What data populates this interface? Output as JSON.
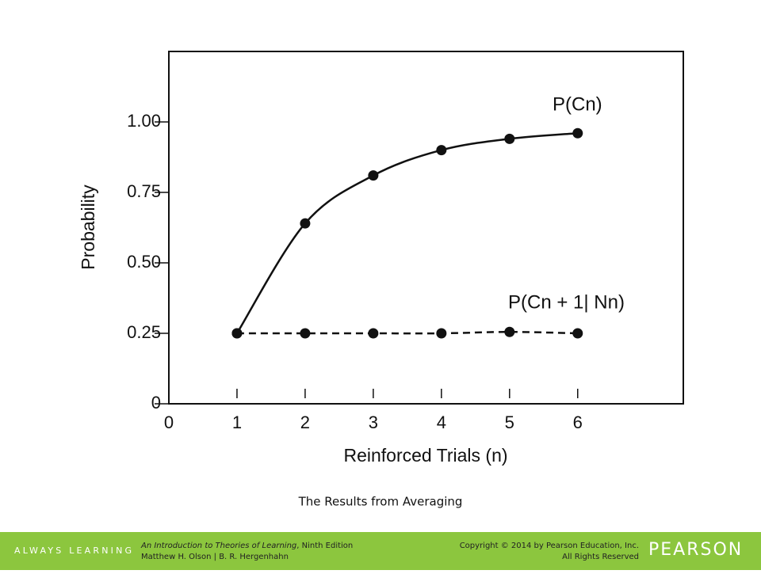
{
  "chart_data": {
    "type": "line",
    "xlabel": "Reinforced Trials (n)",
    "ylabel": "Probability",
    "x": [
      1,
      2,
      3,
      4,
      5,
      6
    ],
    "series": [
      {
        "name": "P(Cn)",
        "color": "#111111",
        "style": "solid",
        "values": [
          0.25,
          0.64,
          0.81,
          0.9,
          0.94,
          0.96
        ]
      },
      {
        "name": "P(Cn + 1| Nn)",
        "color": "#111111",
        "style": "dashed",
        "values": [
          0.25,
          0.25,
          0.25,
          0.25,
          0.255,
          0.25
        ]
      }
    ],
    "xlim": [
      0,
      7.55
    ],
    "ylim": [
      0,
      1.25
    ],
    "xticks": [
      0,
      1,
      2,
      3,
      4,
      5,
      6
    ],
    "yticks": [
      0,
      {
        "value": 0.25,
        "label": "0.25"
      },
      {
        "value": 0.5,
        "label": "0.50"
      },
      {
        "value": 0.75,
        "label": "0.75"
      },
      {
        "value": 1,
        "label": "1.00"
      }
    ]
  },
  "slide": {
    "caption": "The Results from Averaging"
  },
  "footer": {
    "tagline": "ALWAYS LEARNING",
    "book_title": "An Introduction to Theories of Learning",
    "edition": ", Ninth Edition",
    "authors": "Matthew H. Olson | B. R. Hergenhahn",
    "copyright": "Copyright © 2014 by Pearson Education, Inc.",
    "rights": "All Rights Reserved",
    "brand": "PEARSON"
  }
}
